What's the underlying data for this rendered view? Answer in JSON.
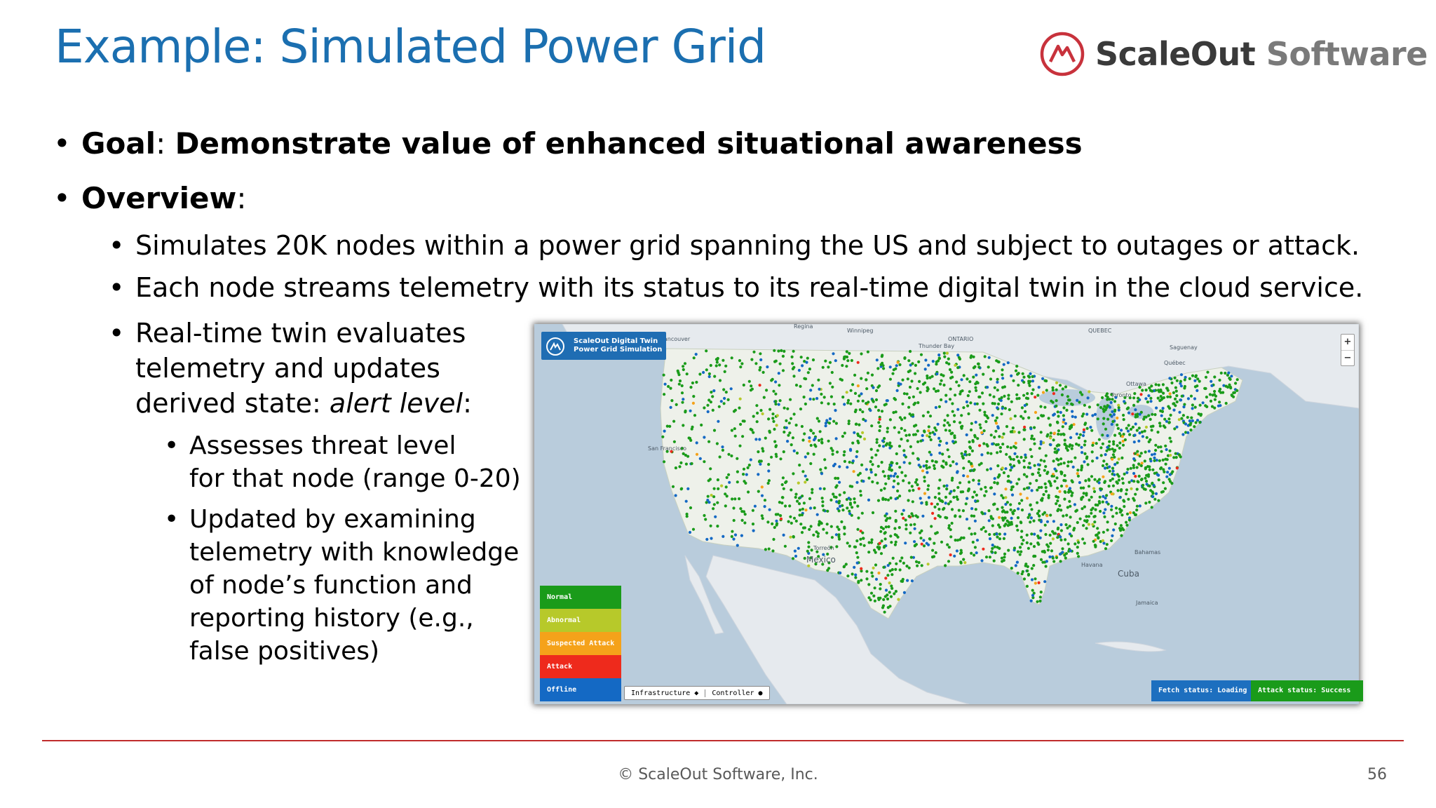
{
  "slide": {
    "title": "Example: Simulated Power Grid",
    "logo": {
      "name_a": "ScaleOut",
      "name_b": "Software",
      "brand_color": "#c8323c"
    },
    "bullets": {
      "goal_label": "Goal",
      "goal_text": "Demonstrate value of enhanced situational awareness",
      "overview_label": "Overview",
      "sub1": "Simulates 20K nodes within a power grid spanning the US and subject to outages or attack.",
      "sub2": "Each node streams telemetry with its status to its real-time digital twin in the cloud service.",
      "sub3_line1": "Real-time twin evaluates",
      "sub3_line2": "telemetry and updates",
      "sub3_line3_prefix": "derived state: ",
      "sub3_line3_em": "alert level",
      "sub3_line3_suffix": ":",
      "sub3a_line1": "Assesses threat level",
      "sub3a_line2": "for that node (range 0-20)",
      "sub3b_line1": "Updated by examining",
      "sub3b_line2": "telemetry with knowledge",
      "sub3b_line3": "of node’s function and",
      "sub3b_line4": "reporting history (e.g.,",
      "sub3b_line5": "false positives)"
    },
    "map": {
      "badge_line1": "ScaleOut Digital Twin",
      "badge_line2": "Power Grid Simulation",
      "zoom_in": "+",
      "zoom_out": "−",
      "legend": [
        {
          "label": "Normal",
          "color": "#1a9b1a"
        },
        {
          "label": "Abnormal",
          "color": "#b7c92a"
        },
        {
          "label": "Suspected Attack",
          "color": "#f5a21a"
        },
        {
          "label": "Attack",
          "color": "#ee2a1c"
        },
        {
          "label": "Offline",
          "color": "#1469c4"
        }
      ],
      "filter_infrastructure": "Infrastructure ◆",
      "filter_controller": "Controller ●",
      "fetch_status": "Fetch status: Loading",
      "attack_status": "Attack status: Success",
      "places": {
        "mexico": "Mexico",
        "cuba": "Cuba",
        "bahamas": "Bahamas",
        "havana": "Havana",
        "vancouver": "Vancouver",
        "quebec": "QUEBEC",
        "ontario": "ONTARIO",
        "ottawa": "Ottawa",
        "toronto": "Toronto",
        "winnipeg": "Winnipeg",
        "regina": "Regina",
        "torreon": "Torreón",
        "san_francisco": "San Francisco",
        "jamaica": "Jamaica",
        "thunder_bay": "Thunder Bay",
        "quebec_city": "Québec",
        "saguenay": "Saguenay"
      }
    },
    "footer": {
      "copyright": "© ScaleOut Software, Inc.",
      "page": "56"
    }
  }
}
